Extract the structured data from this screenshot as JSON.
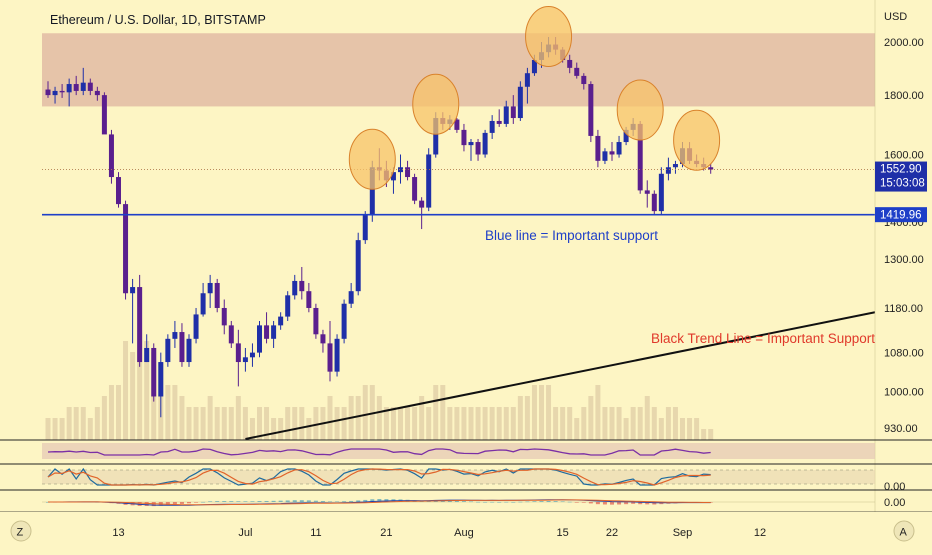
{
  "header": {
    "symbol_title": "Ethereum / U.S. Dollar, 1D, BITSTAMP"
  },
  "price_axis": {
    "currency": "USD",
    "ticks": [
      "2000.00",
      "1800.00",
      "1600.00",
      "1400.00",
      "1300.00",
      "1180.00",
      "1080.00",
      "1000.00",
      "930.00"
    ],
    "last_price": "1552.90",
    "countdown": "15:03:08",
    "support_price": "1419.96"
  },
  "osc_axis": {
    "rsi_label": "",
    "stoch_label": "0.00",
    "macd_label": "0.00"
  },
  "time_axis": {
    "labels": [
      "13",
      "Jul",
      "11",
      "21",
      "Aug",
      "15",
      "22",
      "Sep",
      "12"
    ],
    "left_button": "Z",
    "right_button": "A"
  },
  "annotations": {
    "blue_line_text": "Blue line = Important support",
    "trend_line_text": "Black Trend Line = Important Support"
  },
  "colors": {
    "background": "#fdf5c4",
    "resistance_zone": "#e0b8a2",
    "blue_line": "#1e3fc8",
    "candle_up": "#1f2fa8",
    "candle_down": "#5a1f8e",
    "volume": "#e7d7ad",
    "circle_fill": "#f7c36a",
    "circle_stroke": "#d9822b",
    "trend_text": "#e0392b",
    "blue_text": "#1e3fc8"
  },
  "chart_data": {
    "type": "candlestick",
    "title": "Ethereum / U.S. Dollar, 1D, BITSTAMP",
    "ylabel": "USD",
    "ylim": [
      900,
      2150
    ],
    "y_scale": "log",
    "support_level": 1419.96,
    "resistance_zone": [
      1760,
      2035
    ],
    "trend_line": {
      "from": {
        "x": "Jul 1",
        "y": 890
      },
      "to": {
        "x": "Sep 16",
        "y": 1170
      }
    },
    "x": [
      "Jun 3",
      "Jun 4",
      "Jun 5",
      "Jun 6",
      "Jun 7",
      "Jun 8",
      "Jun 9",
      "Jun 10",
      "Jun 11",
      "Jun 12",
      "Jun 13",
      "Jun 14",
      "Jun 15",
      "Jun 16",
      "Jun 17",
      "Jun 18",
      "Jun 19",
      "Jun 20",
      "Jun 21",
      "Jun 22",
      "Jun 23",
      "Jun 24",
      "Jun 25",
      "Jun 26",
      "Jun 27",
      "Jun 28",
      "Jun 29",
      "Jun 30",
      "Jul 1",
      "Jul 2",
      "Jul 3",
      "Jul 4",
      "Jul 5",
      "Jul 6",
      "Jul 7",
      "Jul 8",
      "Jul 9",
      "Jul 10",
      "Jul 11",
      "Jul 12",
      "Jul 13",
      "Jul 14",
      "Jul 15",
      "Jul 16",
      "Jul 17",
      "Jul 18",
      "Jul 19",
      "Jul 20",
      "Jul 21",
      "Jul 22",
      "Jul 23",
      "Jul 24",
      "Jul 25",
      "Jul 26",
      "Jul 27",
      "Jul 28",
      "Jul 29",
      "Jul 30",
      "Jul 31",
      "Aug 1",
      "Aug 2",
      "Aug 3",
      "Aug 4",
      "Aug 5",
      "Aug 6",
      "Aug 7",
      "Aug 8",
      "Aug 9",
      "Aug 10",
      "Aug 11",
      "Aug 12",
      "Aug 13",
      "Aug 14",
      "Aug 15",
      "Aug 16",
      "Aug 17",
      "Aug 18",
      "Aug 19",
      "Aug 20",
      "Aug 21",
      "Aug 22",
      "Aug 23",
      "Aug 24",
      "Aug 25",
      "Aug 26",
      "Aug 27",
      "Aug 28",
      "Aug 29",
      "Aug 30",
      "Aug 31",
      "Sep 1",
      "Sep 2",
      "Sep 3",
      "Sep 4",
      "Sep 5"
    ],
    "ohlc": [
      [
        1820,
        1850,
        1790,
        1800
      ],
      [
        1800,
        1830,
        1770,
        1815
      ],
      [
        1815,
        1840,
        1790,
        1810
      ],
      [
        1810,
        1860,
        1760,
        1840
      ],
      [
        1840,
        1870,
        1800,
        1815
      ],
      [
        1815,
        1900,
        1800,
        1845
      ],
      [
        1845,
        1860,
        1800,
        1815
      ],
      [
        1815,
        1830,
        1780,
        1800
      ],
      [
        1800,
        1810,
        1670,
        1665
      ],
      [
        1665,
        1680,
        1510,
        1530
      ],
      [
        1530,
        1545,
        1440,
        1450
      ],
      [
        1450,
        1460,
        1200,
        1215
      ],
      [
        1215,
        1250,
        1100,
        1230
      ],
      [
        1230,
        1260,
        1050,
        1060
      ],
      [
        1060,
        1120,
        1060,
        1090
      ],
      [
        1090,
        1100,
        980,
        990
      ],
      [
        990,
        1080,
        950,
        1060
      ],
      [
        1060,
        1120,
        1050,
        1110
      ],
      [
        1110,
        1150,
        1090,
        1125
      ],
      [
        1125,
        1145,
        1050,
        1060
      ],
      [
        1060,
        1120,
        1050,
        1110
      ],
      [
        1110,
        1180,
        1100,
        1165
      ],
      [
        1165,
        1240,
        1160,
        1215
      ],
      [
        1215,
        1260,
        1180,
        1240
      ],
      [
        1240,
        1250,
        1170,
        1180
      ],
      [
        1180,
        1200,
        1120,
        1140
      ],
      [
        1140,
        1150,
        1090,
        1100
      ],
      [
        1100,
        1130,
        1010,
        1060
      ],
      [
        1060,
        1090,
        1040,
        1070
      ],
      [
        1070,
        1100,
        1050,
        1080
      ],
      [
        1080,
        1150,
        1070,
        1140
      ],
      [
        1140,
        1170,
        1100,
        1110
      ],
      [
        1110,
        1150,
        1090,
        1140
      ],
      [
        1140,
        1170,
        1130,
        1160
      ],
      [
        1160,
        1220,
        1150,
        1210
      ],
      [
        1210,
        1260,
        1200,
        1245
      ],
      [
        1245,
        1280,
        1200,
        1220
      ],
      [
        1220,
        1240,
        1170,
        1180
      ],
      [
        1180,
        1190,
        1110,
        1120
      ],
      [
        1120,
        1130,
        1080,
        1100
      ],
      [
        1100,
        1150,
        1020,
        1040
      ],
      [
        1040,
        1120,
        1030,
        1110
      ],
      [
        1110,
        1200,
        1100,
        1190
      ],
      [
        1190,
        1240,
        1180,
        1220
      ],
      [
        1220,
        1370,
        1210,
        1350
      ],
      [
        1350,
        1430,
        1340,
        1420
      ],
      [
        1420,
        1580,
        1400,
        1560
      ],
      [
        1560,
        1620,
        1520,
        1550
      ],
      [
        1550,
        1580,
        1500,
        1520
      ],
      [
        1520,
        1560,
        1480,
        1545
      ],
      [
        1545,
        1600,
        1510,
        1560
      ],
      [
        1560,
        1580,
        1520,
        1530
      ],
      [
        1530,
        1540,
        1450,
        1460
      ],
      [
        1460,
        1470,
        1380,
        1440
      ],
      [
        1440,
        1620,
        1430,
        1600
      ],
      [
        1600,
        1740,
        1590,
        1720
      ],
      [
        1720,
        1740,
        1680,
        1700
      ],
      [
        1700,
        1730,
        1680,
        1715
      ],
      [
        1715,
        1720,
        1670,
        1680
      ],
      [
        1680,
        1700,
        1610,
        1630
      ],
      [
        1630,
        1650,
        1580,
        1640
      ],
      [
        1640,
        1650,
        1580,
        1600
      ],
      [
        1600,
        1680,
        1590,
        1670
      ],
      [
        1670,
        1730,
        1650,
        1710
      ],
      [
        1710,
        1750,
        1690,
        1700
      ],
      [
        1700,
        1780,
        1690,
        1760
      ],
      [
        1760,
        1800,
        1700,
        1720
      ],
      [
        1720,
        1850,
        1710,
        1830
      ],
      [
        1830,
        1900,
        1770,
        1880
      ],
      [
        1880,
        1950,
        1870,
        1930
      ],
      [
        1930,
        2000,
        1900,
        1960
      ],
      [
        1960,
        2020,
        1940,
        1990
      ],
      [
        1990,
        2020,
        1950,
        1970
      ],
      [
        1970,
        1980,
        1920,
        1930
      ],
      [
        1930,
        1950,
        1880,
        1900
      ],
      [
        1900,
        1920,
        1860,
        1870
      ],
      [
        1870,
        1880,
        1820,
        1840
      ],
      [
        1840,
        1850,
        1640,
        1660
      ],
      [
        1660,
        1680,
        1560,
        1580
      ],
      [
        1580,
        1620,
        1570,
        1610
      ],
      [
        1610,
        1640,
        1580,
        1600
      ],
      [
        1600,
        1660,
        1590,
        1640
      ],
      [
        1640,
        1690,
        1630,
        1680
      ],
      [
        1680,
        1720,
        1660,
        1700
      ],
      [
        1700,
        1710,
        1480,
        1490
      ],
      [
        1490,
        1520,
        1440,
        1480
      ],
      [
        1480,
        1490,
        1420,
        1430
      ],
      [
        1430,
        1560,
        1420,
        1540
      ],
      [
        1540,
        1590,
        1520,
        1560
      ],
      [
        1560,
        1580,
        1540,
        1570
      ],
      [
        1570,
        1640,
        1560,
        1620
      ],
      [
        1620,
        1640,
        1570,
        1580
      ],
      [
        1580,
        1600,
        1560,
        1570
      ],
      [
        1570,
        1590,
        1550,
        1560
      ],
      [
        1560,
        1570,
        1540,
        1553
      ]
    ],
    "volume": [
      2,
      2,
      2,
      3,
      3,
      3,
      2,
      3,
      4,
      5,
      5,
      9,
      8,
      10,
      9,
      8,
      7,
      5,
      5,
      4,
      3,
      3,
      3,
      4,
      3,
      3,
      3,
      4,
      3,
      2,
      3,
      3,
      2,
      2,
      3,
      3,
      3,
      2,
      3,
      3,
      4,
      3,
      3,
      4,
      4,
      5,
      5,
      4,
      3,
      3,
      3,
      3,
      3,
      4,
      3,
      5,
      5,
      3,
      3,
      3,
      3,
      3,
      3,
      3,
      3,
      3,
      3,
      4,
      4,
      5,
      5,
      5,
      3,
      3,
      3,
      2,
      3,
      4,
      5,
      3,
      3,
      3,
      2,
      3,
      3,
      4,
      3,
      2,
      3,
      3,
      2,
      2,
      2,
      1,
      1
    ]
  }
}
